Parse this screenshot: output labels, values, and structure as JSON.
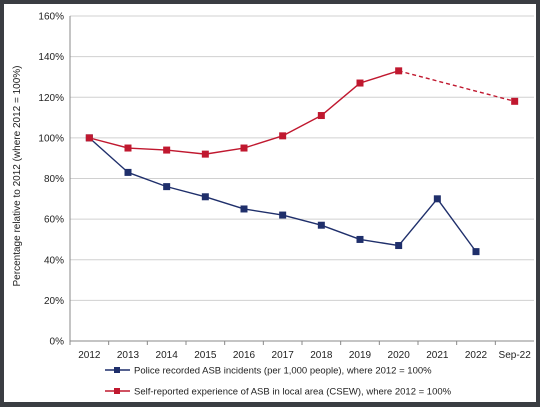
{
  "chart_data": {
    "type": "line",
    "title": "",
    "xlabel": "",
    "ylabel": "Percentage relative to 2012 (where 2012 = 100%)",
    "categories": [
      "2012",
      "2013",
      "2014",
      "2015",
      "2016",
      "2017",
      "2018",
      "2019",
      "2020",
      "2021",
      "2022",
      "Sep-22"
    ],
    "y_ticks": [
      "0%",
      "20%",
      "40%",
      "60%",
      "80%",
      "100%",
      "120%",
      "140%",
      "160%"
    ],
    "ylim": [
      0,
      160
    ],
    "grid": true,
    "legend_position": "bottom",
    "series": [
      {
        "name": "Police recorded ASB incidents (per 1,000 people), where 2012 = 100%",
        "color": "#1f2f6b",
        "values": [
          100,
          83,
          76,
          71,
          65,
          62,
          57,
          50,
          47,
          70,
          44,
          null
        ],
        "dashed_from_index": null
      },
      {
        "name": "Self-reported experience of ASB in local area (CSEW), where 2012 = 100%",
        "color": "#c0182f",
        "values": [
          100,
          95,
          94,
          92,
          95,
          101,
          111,
          127,
          133,
          null,
          null,
          118
        ],
        "dashed_from_index": 8
      }
    ]
  }
}
